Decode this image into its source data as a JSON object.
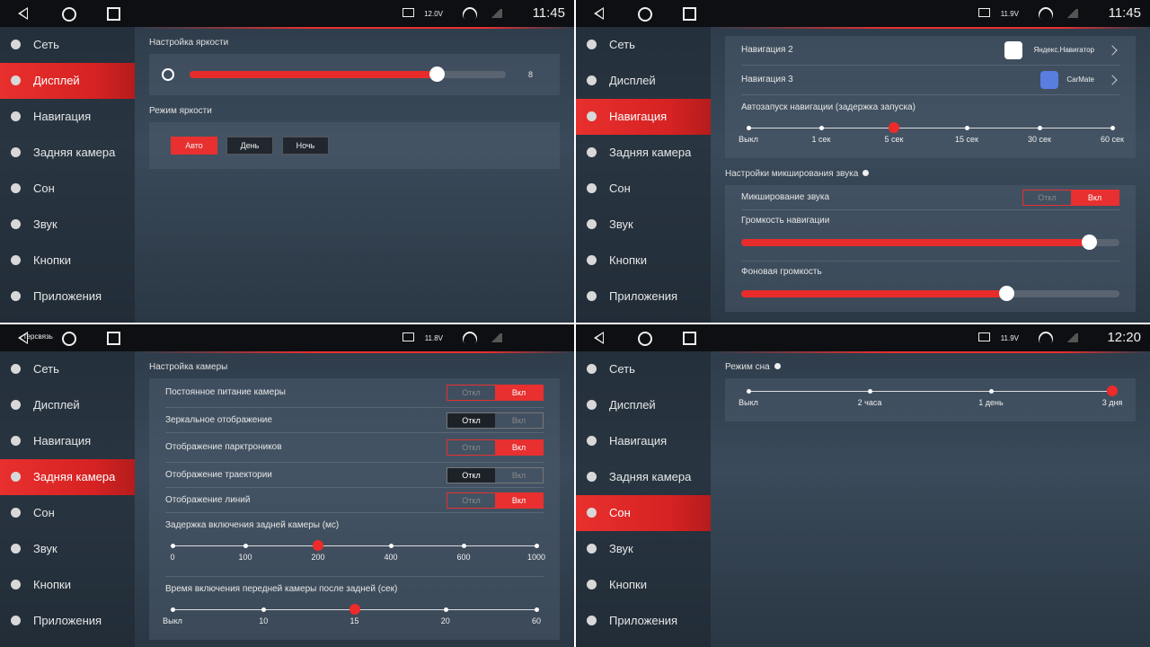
{
  "menu": [
    "Сеть",
    "Дисплей",
    "Навигация",
    "Задняя камера",
    "Сон",
    "Звук",
    "Кнопки",
    "Приложения"
  ],
  "panels": [
    {
      "voltage": "12.0V",
      "time": "11:45",
      "active": 1,
      "groups": [
        {
          "title": "Настройка яркости",
          "items": [
            {
              "kind": "brightness",
              "level": 78,
              "value": 8
            }
          ]
        },
        {
          "title": "Режим яркости",
          "items": [
            {
              "kind": "buttons",
              "options": [
                "Авто",
                "День",
                "Ночь"
              ],
              "selected": 0
            }
          ]
        }
      ]
    },
    {
      "voltage": "11.9V",
      "time": "11:45",
      "active": 2,
      "groups": [
        {
          "items": [
            {
              "kind": "link",
              "label": "Навигация 2",
              "app": "Яндекс.Навигатор"
            },
            {
              "kind": "link",
              "label": "Навигация 3",
              "app": "CarMate"
            },
            {
              "kind": "steps",
              "label": "Автозапуск навигации (задержка запуска)",
              "steps": [
                "Выкл",
                "1 сек",
                "5 сек",
                "15 сек",
                "30 сек",
                "60 сек"
              ],
              "selected": 2
            }
          ]
        },
        {
          "title": "Настройки микширования звука",
          "info": true,
          "items": [
            {
              "kind": "toggle",
              "label": "Микширование звука",
              "off": "Откл",
              "on": "Вкл",
              "state": true
            },
            {
              "kind": "slider",
              "label": "Громкость навигации",
              "level": 92
            },
            {
              "kind": "slider",
              "label": "Фоновая громкость",
              "level": 70
            }
          ]
        }
      ]
    },
    {
      "voltage": "11.8V",
      "back_label": "терсвязь",
      "active": 3,
      "groups": [
        {
          "title": "Настройка камеры",
          "items": [
            {
              "kind": "toggle",
              "label": "Постоянное питание камеры",
              "off": "Откл",
              "on": "Вкл",
              "state": true
            },
            {
              "kind": "toggle",
              "label": "Зеркальное отображение",
              "off": "Откл",
              "on": "Вкл",
              "state": false
            },
            {
              "kind": "toggle",
              "label": "Отображение парктроников",
              "off": "Откл",
              "on": "Вкл",
              "state": true
            },
            {
              "kind": "toggle",
              "label": "Отображение траектории",
              "off": "Откл",
              "on": "Вкл",
              "state": false
            },
            {
              "kind": "toggle",
              "label": "Отображение линий",
              "off": "Откл",
              "on": "Вкл",
              "state": true
            },
            {
              "kind": "steps",
              "label": "Задержка включения задней камеры (мс)",
              "steps": [
                "0",
                "100",
                "200",
                "400",
                "600",
                "1000"
              ],
              "selected": 2
            },
            {
              "kind": "steps",
              "label": "Время включения передней камеры после задней (сек)",
              "steps": [
                "Выкл",
                "10",
                "15",
                "20",
                "60"
              ],
              "selected": 2
            }
          ]
        }
      ]
    },
    {
      "voltage": "11.9V",
      "time": "12:20",
      "active": 4,
      "groups": [
        {
          "title": "Режим сна",
          "info": true,
          "items": [
            {
              "kind": "steps",
              "steps": [
                "Выкл",
                "2 часа",
                "1 день",
                "3 дня"
              ],
              "selected": 3
            }
          ]
        }
      ]
    }
  ]
}
